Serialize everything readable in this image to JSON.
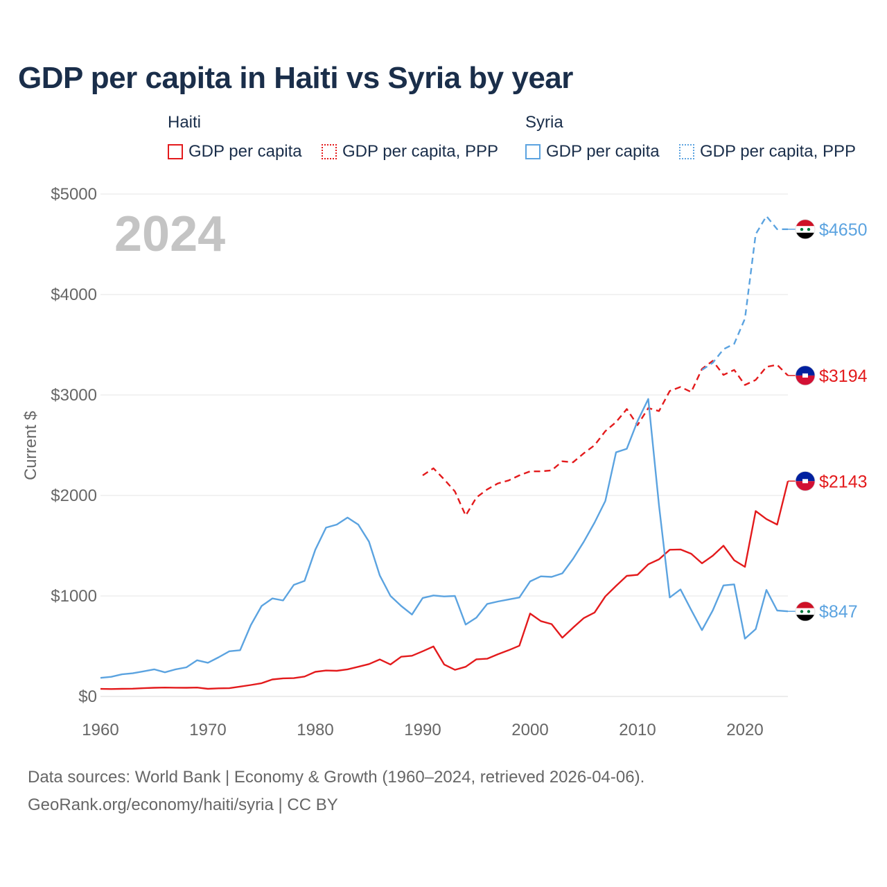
{
  "title": "GDP per capita in Haiti vs Syria by year",
  "legend": {
    "groups": [
      {
        "name": "Haiti",
        "items": [
          "GDP per capita",
          "GDP per capita, PPP"
        ]
      },
      {
        "name": "Syria",
        "items": [
          "GDP per capita",
          "GDP per capita, PPP"
        ]
      }
    ]
  },
  "colors": {
    "haiti": "#e31a1c",
    "syria": "#5ba3e0",
    "grid": "#e6e6e6",
    "axis_text": "#666666",
    "year_watermark": "#c4c4c4"
  },
  "year_label": "2024",
  "end_labels": [
    {
      "series": "Syria GDP per capita, PPP",
      "value": 4650,
      "text": "$4650",
      "flag": "syria-flag-icon"
    },
    {
      "series": "Haiti GDP per capita, PPP",
      "value": 3194,
      "text": "$3194",
      "flag": "haiti-flag-icon"
    },
    {
      "series": "Haiti GDP per capita",
      "value": 2143,
      "text": "$2143",
      "flag": "haiti-flag-icon"
    },
    {
      "series": "Syria GDP per capita",
      "value": 847,
      "text": "$847",
      "flag": "syria-flag-icon"
    }
  ],
  "footer": {
    "line1": "Data sources: World Bank | Economy & Growth (1960–2024, retrieved 2026-04-06).",
    "line2": "GeoRank.org/economy/haiti/syria | CC BY"
  },
  "chart_data": {
    "type": "line",
    "title": "GDP per capita in Haiti vs Syria by year",
    "xlabel": "",
    "ylabel": "Current $",
    "xlim": [
      1960,
      2024
    ],
    "ylim": [
      0,
      5000
    ],
    "x_ticks": [
      1960,
      1970,
      1980,
      1990,
      2000,
      2010,
      2020
    ],
    "y_ticks": [
      0,
      1000,
      2000,
      3000,
      4000,
      5000
    ],
    "y_tick_labels": [
      "$0",
      "$1000",
      "$2000",
      "$3000",
      "$4000",
      "$5000"
    ],
    "grid": true,
    "series": [
      {
        "name": "Haiti GDP per capita",
        "country": "Haiti",
        "style": "solid",
        "x": [
          1960,
          1961,
          1962,
          1963,
          1964,
          1965,
          1966,
          1967,
          1968,
          1969,
          1970,
          1971,
          1972,
          1973,
          1974,
          1975,
          1976,
          1977,
          1978,
          1979,
          1980,
          1981,
          1982,
          1983,
          1984,
          1985,
          1986,
          1987,
          1988,
          1989,
          1990,
          1991,
          1992,
          1993,
          1994,
          1995,
          1996,
          1997,
          1998,
          1999,
          2000,
          2001,
          2002,
          2003,
          2004,
          2005,
          2006,
          2007,
          2008,
          2009,
          2010,
          2011,
          2012,
          2013,
          2014,
          2015,
          2016,
          2017,
          2018,
          2019,
          2020,
          2021,
          2022,
          2023,
          2024
        ],
        "values": [
          75,
          74,
          76,
          77,
          82,
          86,
          88,
          87,
          86,
          88,
          76,
          81,
          82,
          98,
          114,
          132,
          169,
          180,
          182,
          198,
          245,
          258,
          255,
          270,
          295,
          322,
          368,
          318,
          395,
          405,
          450,
          497,
          318,
          265,
          295,
          370,
          375,
          420,
          460,
          505,
          825,
          750,
          720,
          585,
          685,
          780,
          835,
          995,
          1100,
          1200,
          1210,
          1315,
          1365,
          1460,
          1463,
          1420,
          1325,
          1400,
          1500,
          1355,
          1290,
          1845,
          1765,
          1710,
          2143
        ]
      },
      {
        "name": "Haiti GDP per capita, PPP",
        "country": "Haiti",
        "style": "dashed",
        "x": [
          1990,
          1991,
          1992,
          1993,
          1994,
          1995,
          1996,
          1997,
          1998,
          1999,
          2000,
          2001,
          2002,
          2003,
          2004,
          2005,
          2006,
          2007,
          2008,
          2009,
          2010,
          2011,
          2012,
          2013,
          2014,
          2015,
          2016,
          2017,
          2018,
          2019,
          2020,
          2021,
          2022,
          2023,
          2024
        ],
        "values": [
          2200,
          2270,
          2160,
          2040,
          1800,
          1980,
          2060,
          2120,
          2150,
          2200,
          2240,
          2240,
          2250,
          2340,
          2330,
          2420,
          2500,
          2640,
          2730,
          2860,
          2700,
          2870,
          2840,
          3040,
          3080,
          3030,
          3260,
          3340,
          3200,
          3250,
          3100,
          3150,
          3280,
          3300,
          3194
        ]
      },
      {
        "name": "Syria GDP per capita",
        "country": "Syria",
        "style": "solid",
        "x": [
          1960,
          1961,
          1962,
          1963,
          1964,
          1965,
          1966,
          1967,
          1968,
          1969,
          1970,
          1971,
          1972,
          1973,
          1974,
          1975,
          1976,
          1977,
          1978,
          1979,
          1980,
          1981,
          1982,
          1983,
          1984,
          1985,
          1986,
          1987,
          1988,
          1989,
          1990,
          1991,
          1992,
          1993,
          1994,
          1995,
          1996,
          1997,
          1998,
          1999,
          2000,
          2001,
          2002,
          2003,
          2004,
          2005,
          2006,
          2007,
          2008,
          2009,
          2010,
          2011,
          2012,
          2013,
          2014,
          2015,
          2016,
          2017,
          2018,
          2019,
          2020,
          2021,
          2022,
          2023,
          2024
        ],
        "values": [
          185,
          195,
          220,
          230,
          250,
          270,
          240,
          270,
          290,
          360,
          335,
          390,
          450,
          460,
          710,
          900,
          975,
          955,
          1110,
          1150,
          1460,
          1680,
          1710,
          1780,
          1710,
          1540,
          1205,
          1000,
          900,
          815,
          980,
          1005,
          995,
          1000,
          715,
          785,
          920,
          945,
          965,
          985,
          1145,
          1195,
          1190,
          1225,
          1370,
          1540,
          1730,
          1945,
          2430,
          2465,
          2740,
          2960,
          1900,
          985,
          1065,
          860,
          660,
          855,
          1105,
          1115,
          575,
          670,
          1060,
          855,
          847
        ]
      },
      {
        "name": "Syria GDP per capita, PPP",
        "country": "Syria",
        "style": "dashed",
        "x": [
          2016,
          2017,
          2018,
          2019,
          2020,
          2021,
          2022,
          2023,
          2024
        ],
        "values": [
          3250,
          3320,
          3455,
          3510,
          3760,
          4600,
          4780,
          4650,
          4650
        ]
      }
    ]
  }
}
